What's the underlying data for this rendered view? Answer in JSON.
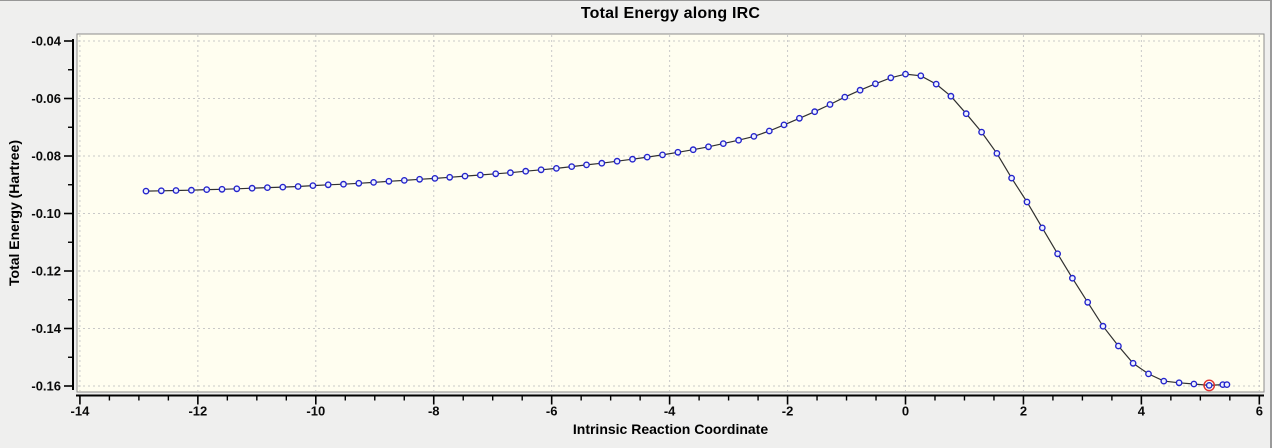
{
  "chart_data": {
    "type": "line",
    "title": "Total Energy along IRC",
    "xlabel": "Intrinsic Reaction Coordinate",
    "ylabel": "Total Energy (Hartree)",
    "xlim": [
      -14.05,
      6.1
    ],
    "ylim": [
      -0.1625,
      -0.0376
    ],
    "x_major_ticks": [
      -14,
      -12,
      -10,
      -8,
      -6,
      -4,
      -2,
      0,
      2,
      4,
      6
    ],
    "x_minor_step": 0.5,
    "y_major_ticks": [
      -0.04,
      -0.06,
      -0.08,
      -0.1,
      -0.12,
      -0.14,
      -0.16
    ],
    "y_minor_step": 0.01,
    "grid": "dashed lines at major ticks, both axes",
    "legend": "none",
    "selected_index": 70,
    "series": [
      {
        "name": "Total Energy",
        "marker": "open-circle-blue",
        "x": [
          -12.88,
          -12.62,
          -12.37,
          -12.11,
          -11.85,
          -11.59,
          -11.34,
          -11.08,
          -10.82,
          -10.56,
          -10.3,
          -10.05,
          -9.79,
          -9.53,
          -9.27,
          -9.02,
          -8.76,
          -8.5,
          -8.24,
          -7.98,
          -7.73,
          -7.47,
          -7.21,
          -6.95,
          -6.7,
          -6.44,
          -6.18,
          -5.92,
          -5.66,
          -5.41,
          -5.15,
          -4.89,
          -4.63,
          -4.38,
          -4.12,
          -3.86,
          -3.6,
          -3.34,
          -3.09,
          -2.83,
          -2.57,
          -2.31,
          -2.06,
          -1.8,
          -1.54,
          -1.28,
          -1.03,
          -0.77,
          -0.51,
          -0.25,
          0.0,
          0.26,
          0.52,
          0.77,
          1.03,
          1.29,
          1.55,
          1.8,
          2.06,
          2.32,
          2.58,
          2.83,
          3.09,
          3.35,
          3.61,
          3.86,
          4.12,
          4.38,
          4.64,
          4.89,
          5.15,
          5.38,
          5.45
        ],
        "y": [
          -0.0922,
          -0.0921,
          -0.092,
          -0.0919,
          -0.0917,
          -0.0916,
          -0.0914,
          -0.0912,
          -0.091,
          -0.0908,
          -0.0906,
          -0.0903,
          -0.09,
          -0.0898,
          -0.0895,
          -0.0892,
          -0.0888,
          -0.0885,
          -0.0881,
          -0.0878,
          -0.0874,
          -0.087,
          -0.0866,
          -0.0862,
          -0.0858,
          -0.0853,
          -0.0848,
          -0.0843,
          -0.0837,
          -0.0831,
          -0.0825,
          -0.0818,
          -0.0811,
          -0.0804,
          -0.0796,
          -0.0787,
          -0.0778,
          -0.0768,
          -0.0757,
          -0.0745,
          -0.0732,
          -0.0713,
          -0.0692,
          -0.0669,
          -0.0646,
          -0.0621,
          -0.0595,
          -0.0571,
          -0.0549,
          -0.0528,
          -0.0515,
          -0.0521,
          -0.055,
          -0.0592,
          -0.0653,
          -0.0717,
          -0.0791,
          -0.0877,
          -0.096,
          -0.105,
          -0.114,
          -0.1225,
          -0.1309,
          -0.1392,
          -0.1461,
          -0.1521,
          -0.1558,
          -0.1583,
          -0.1589,
          -0.1593,
          -0.1598,
          -0.1595,
          -0.1595
        ]
      }
    ],
    "colors": {
      "outer_bg": "#efefee",
      "plot_bg": "#fffef0",
      "frame": "#8c8c8c",
      "grid": "#c9c9c9",
      "axis": "#000000",
      "text": "#0a0a0a",
      "line": "#303030",
      "marker": "#2424cc",
      "marker_fill": "#eef2ff",
      "selected": "#e03131"
    }
  }
}
